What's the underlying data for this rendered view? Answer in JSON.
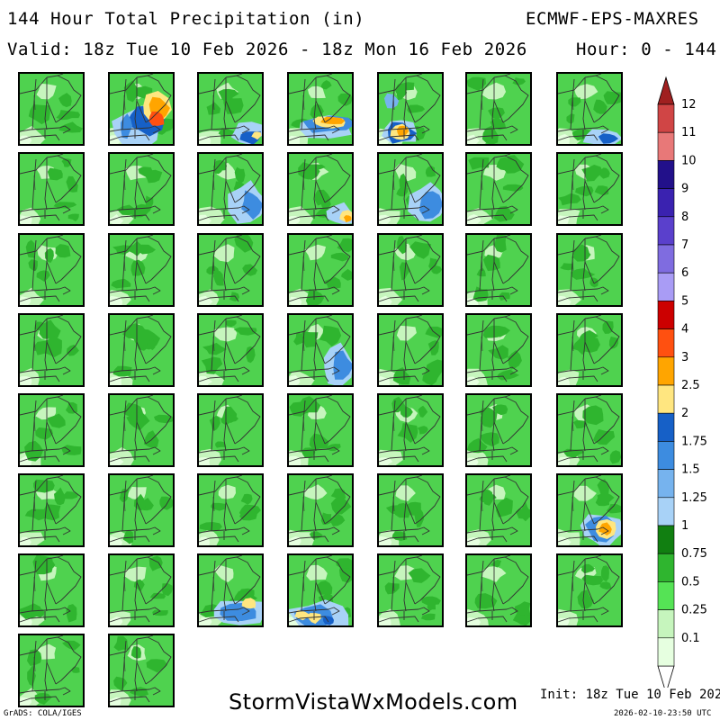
{
  "header": {
    "title": "144 Hour Total Precipitation (in)",
    "model": "ECMWF-EPS-MAXRES",
    "valid": "Valid: 18z Tue 10 Feb 2026 - 18z Mon 16 Feb 2026",
    "hours": "Hour: 0 - 144"
  },
  "footer": {
    "site": "StormVistaWxModels.com",
    "init": "Init: 18z Tue 10 Feb 2026",
    "grads": "GrADS: COLA/IGES",
    "timestamp": "2026-02-10-23:50 UTC"
  },
  "colors": {
    "land_base": "#4fd24f",
    "border_lines": "#333333",
    "panel_frame": "#000000"
  },
  "colorbar": {
    "levels": [
      {
        "label": "0.1",
        "color": "#e6ffe0"
      },
      {
        "label": "0.25",
        "color": "#c6f5bd"
      },
      {
        "label": "0.5",
        "color": "#55e355"
      },
      {
        "label": "0.75",
        "color": "#2fb52f"
      },
      {
        "label": "1",
        "color": "#117f11"
      },
      {
        "label": "1.25",
        "color": "#a8d2f7"
      },
      {
        "label": "1.5",
        "color": "#76b3ee"
      },
      {
        "label": "1.75",
        "color": "#3d8ce0"
      },
      {
        "label": "2",
        "color": "#1660c7"
      },
      {
        "label": "2.5",
        "color": "#ffe680"
      },
      {
        "label": "3",
        "color": "#ffa500"
      },
      {
        "label": "4",
        "color": "#ff5010"
      },
      {
        "label": "5",
        "color": "#cc0000"
      },
      {
        "label": "6",
        "color": "#a99cf5"
      },
      {
        "label": "7",
        "color": "#7f6ce0"
      },
      {
        "label": "8",
        "color": "#5a40cc"
      },
      {
        "label": "9",
        "color": "#3a22b0"
      },
      {
        "label": "10",
        "color": "#22108a"
      },
      {
        "label": "11",
        "color": "#e87878"
      },
      {
        "label": "12",
        "color": "#d04545"
      }
    ],
    "top_color": "#a02020"
  },
  "panels": [
    {
      "member": 1,
      "pattern": "plain"
    },
    {
      "member": 2,
      "pattern": "heavy-west"
    },
    {
      "member": 3,
      "pattern": "south-blue"
    },
    {
      "member": 4,
      "pattern": "band-orange"
    },
    {
      "member": 5,
      "pattern": "south-orange"
    },
    {
      "member": 6,
      "pattern": "plain"
    },
    {
      "member": 7,
      "pattern": "se-blue"
    },
    {
      "member": 8,
      "pattern": "plain"
    },
    {
      "member": 9,
      "pattern": "plain"
    },
    {
      "member": 10,
      "pattern": "coast-blue"
    },
    {
      "member": 11,
      "pattern": "se-orange"
    },
    {
      "member": 12,
      "pattern": "coast-blue"
    },
    {
      "member": 13,
      "pattern": "plain"
    },
    {
      "member": 14,
      "pattern": "plain"
    },
    {
      "member": 15,
      "pattern": "plain"
    },
    {
      "member": 16,
      "pattern": "plain"
    },
    {
      "member": 17,
      "pattern": "plain"
    },
    {
      "member": 18,
      "pattern": "plain"
    },
    {
      "member": 19,
      "pattern": "plain"
    },
    {
      "member": 20,
      "pattern": "plain"
    },
    {
      "member": 21,
      "pattern": "plain"
    },
    {
      "member": 22,
      "pattern": "plain"
    },
    {
      "member": 23,
      "pattern": "plain"
    },
    {
      "member": 24,
      "pattern": "plain"
    },
    {
      "member": 25,
      "pattern": "coast-blue"
    },
    {
      "member": 26,
      "pattern": "plain"
    },
    {
      "member": 27,
      "pattern": "plain"
    },
    {
      "member": 28,
      "pattern": "plain"
    },
    {
      "member": 29,
      "pattern": "plain"
    },
    {
      "member": 30,
      "pattern": "plain"
    },
    {
      "member": 31,
      "pattern": "plain"
    },
    {
      "member": 32,
      "pattern": "plain"
    },
    {
      "member": 33,
      "pattern": "plain"
    },
    {
      "member": 34,
      "pattern": "plain"
    },
    {
      "member": 35,
      "pattern": "plain"
    },
    {
      "member": 36,
      "pattern": "plain"
    },
    {
      "member": 37,
      "pattern": "plain"
    },
    {
      "member": 38,
      "pattern": "plain"
    },
    {
      "member": 39,
      "pattern": "plain"
    },
    {
      "member": 40,
      "pattern": "plain"
    },
    {
      "member": 41,
      "pattern": "plain"
    },
    {
      "member": 42,
      "pattern": "se-orange-big"
    },
    {
      "member": 43,
      "pattern": "plain"
    },
    {
      "member": 44,
      "pattern": "plain"
    },
    {
      "member": 45,
      "pattern": "coast-blue-orange"
    },
    {
      "member": 46,
      "pattern": "south-heavy"
    },
    {
      "member": 47,
      "pattern": "plain"
    },
    {
      "member": 48,
      "pattern": "plain"
    },
    {
      "member": 49,
      "pattern": "plain"
    },
    {
      "member": 50,
      "pattern": "plain"
    },
    {
      "member": 51,
      "pattern": "plain"
    }
  ]
}
